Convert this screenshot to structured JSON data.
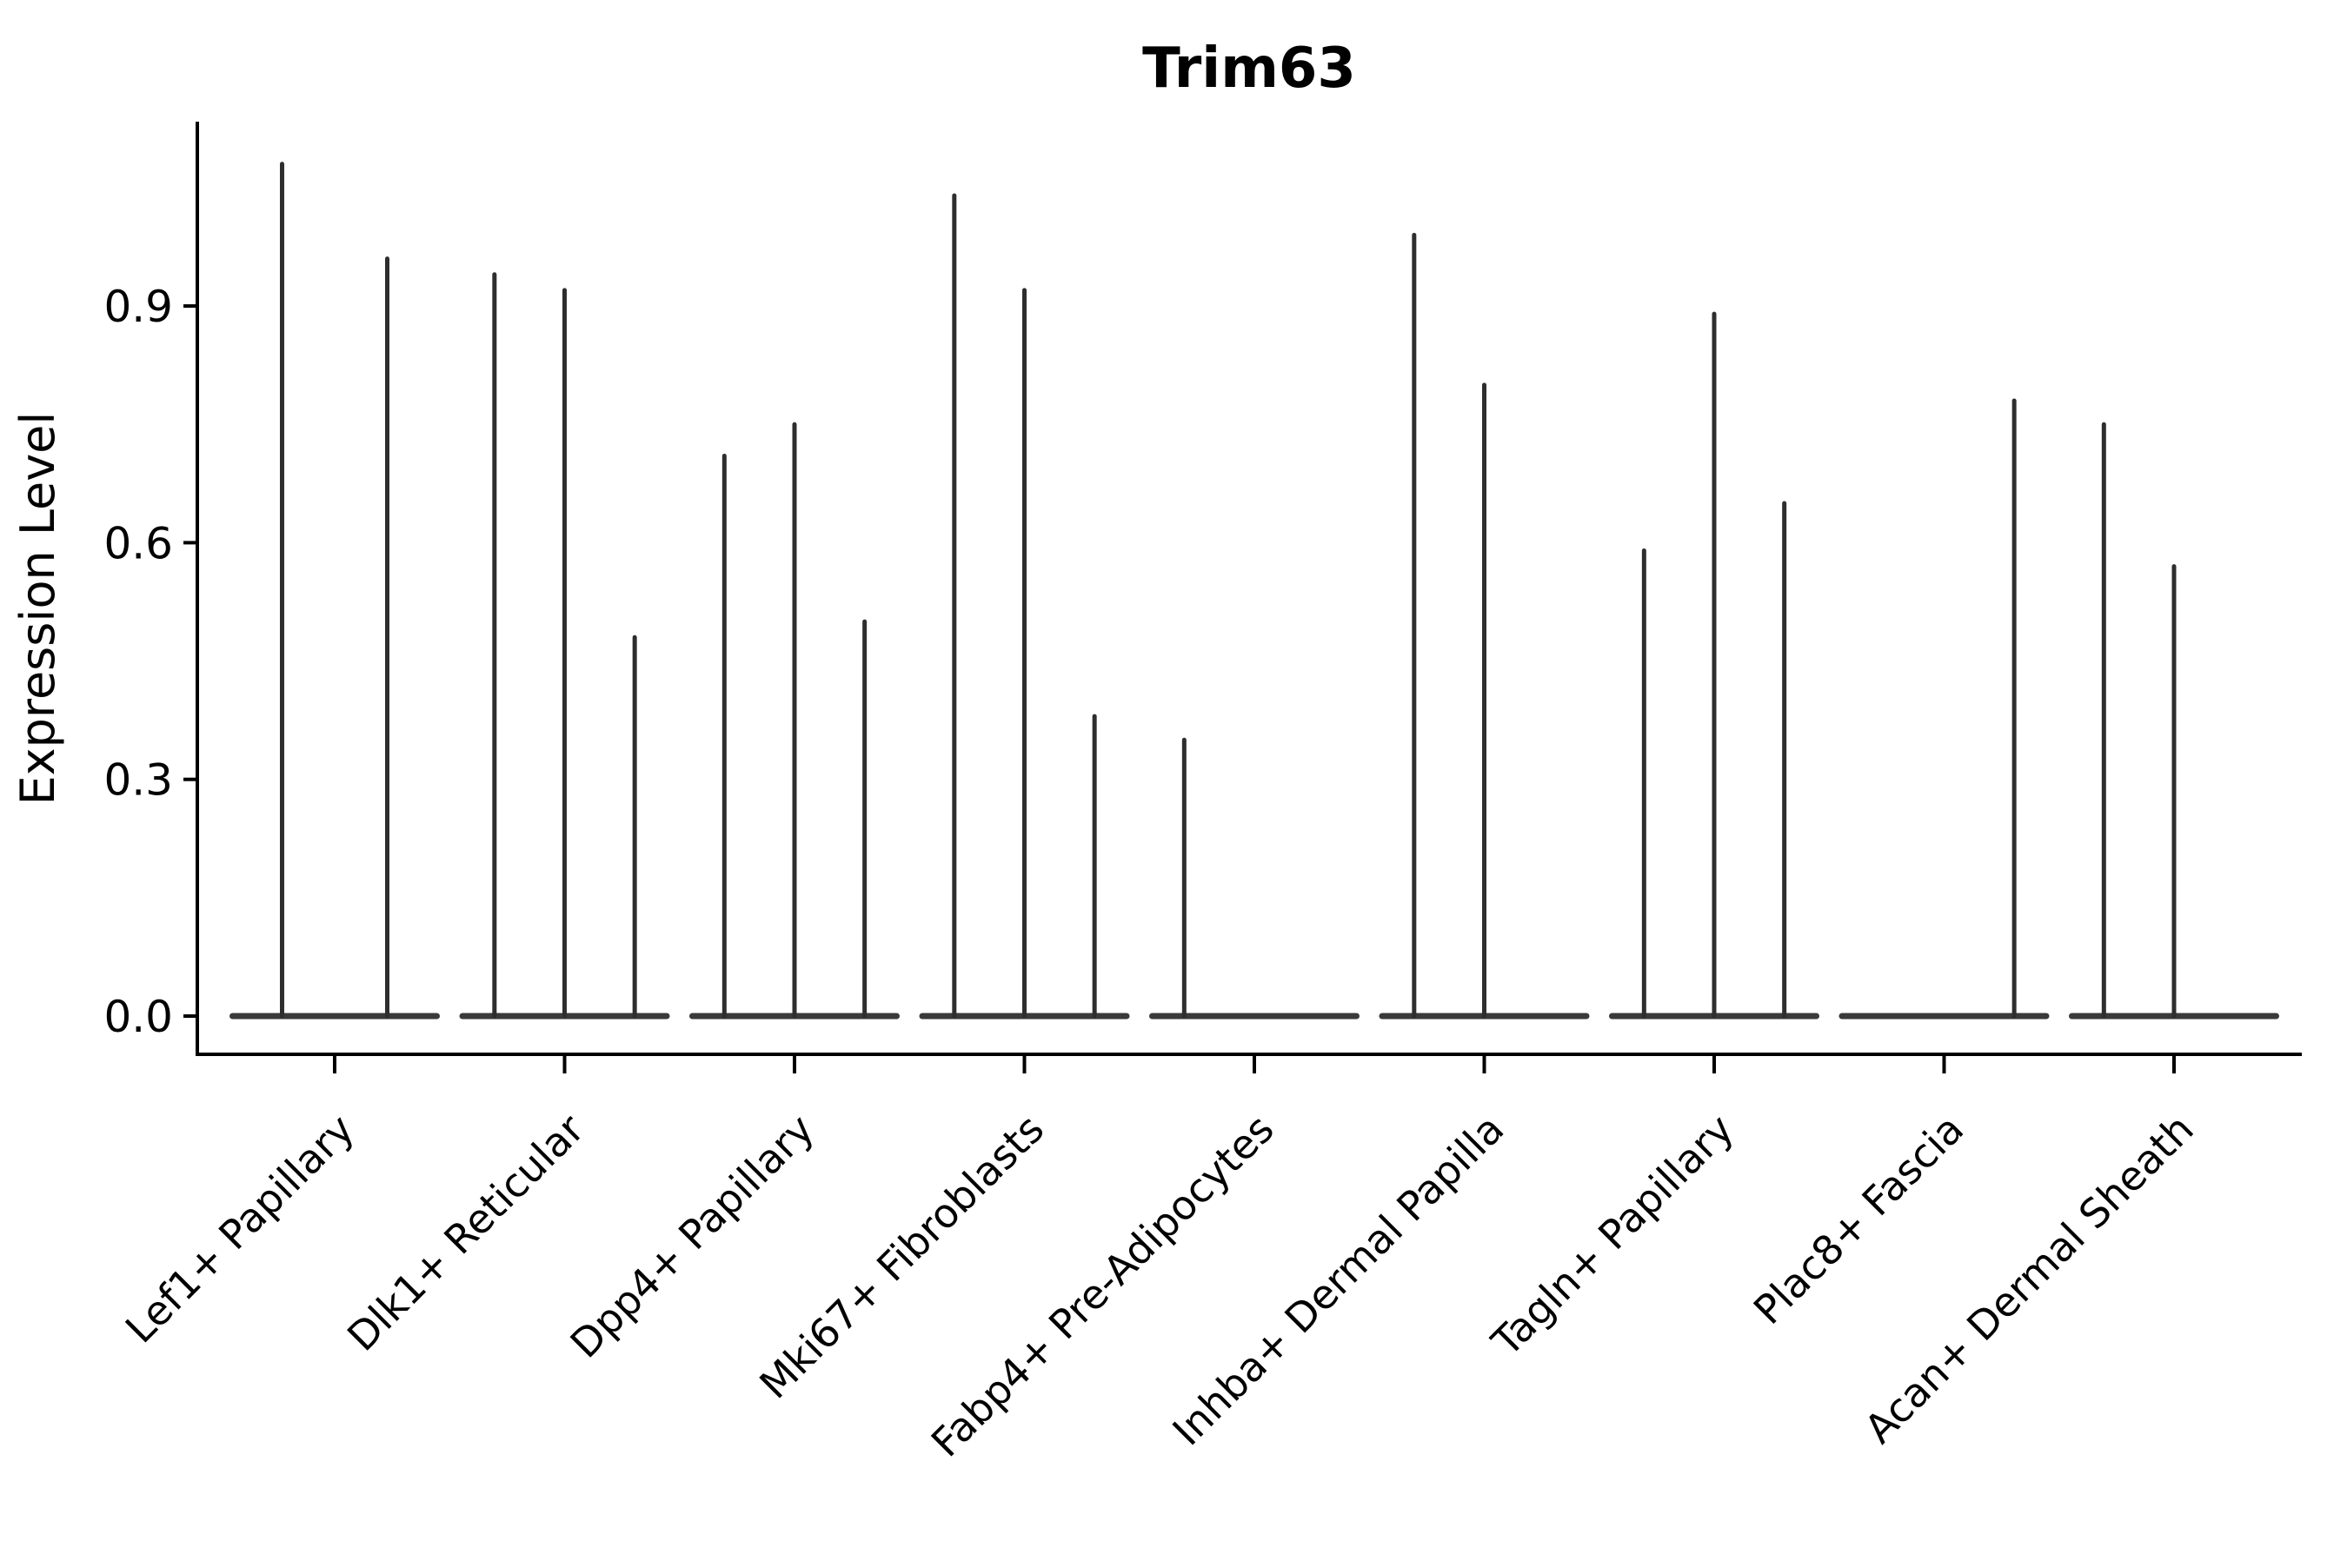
{
  "figure": {
    "title": "Trim63",
    "y_axis": {
      "label": "Expression Level",
      "tick_labels": [
        "0.0",
        "0.3",
        "0.6",
        "0.9"
      ]
    },
    "x_axis": {
      "categories": [
        "Lef1+ Papillary",
        "Dlk1+ Reticular",
        "Dpp4+ Papillary",
        "Mki67+ Fibroblasts",
        "Fabp4+ Pre-Adipocytes",
        "Inhba+ Dermal Papilla",
        "Tagln+ Papillary",
        "Plac8+ Fascia",
        "Acan+ Dermal Sheath"
      ]
    }
  },
  "chart_data": {
    "type": "violin",
    "title": "Trim63",
    "xlabel": "",
    "ylabel": "Expression Level",
    "ylim": [
      -0.05,
      1.14
    ],
    "yticks": [
      0.0,
      0.3,
      0.6,
      0.9
    ],
    "grid": false,
    "legend": null,
    "description": "Violin plot of Trim63 expression; each violin is collapsed flat at 0 with a thin spike reaching the maximum expression value of that group",
    "categories": [
      "Lef1+ Papillary",
      "Dlk1+ Reticular",
      "Dpp4+ Papillary",
      "Mki67+ Fibroblasts",
      "Fabp4+ Pre-Adipocytes",
      "Inhba+ Dermal Papilla",
      "Tagln+ Papillary",
      "Plac8+ Fascia",
      "Acan+ Dermal Sheath"
    ],
    "violins": [
      {
        "category": "Lef1+ Papillary",
        "group_maxima": [
          1.08,
          0.96
        ]
      },
      {
        "category": "Dlk1+ Reticular",
        "group_maxima": [
          0.94,
          0.92,
          0.48
        ]
      },
      {
        "category": "Dpp4+ Papillary",
        "group_maxima": [
          0.71,
          0.75,
          0.5
        ]
      },
      {
        "category": "Mki67+ Fibroblasts",
        "group_maxima": [
          1.04,
          0.92,
          0.38
        ]
      },
      {
        "category": "Fabp4+ Pre-Adipocytes",
        "group_maxima": [
          0.35,
          0,
          0
        ]
      },
      {
        "category": "Inhba+ Dermal Papilla",
        "group_maxima": [
          0.99,
          0.8,
          0
        ]
      },
      {
        "category": "Tagln+ Papillary",
        "group_maxima": [
          0.59,
          0.89,
          0.65
        ]
      },
      {
        "category": "Plac8+ Fascia",
        "group_maxima": [
          0,
          0,
          0.78
        ]
      },
      {
        "category": "Acan+ Dermal Sheath",
        "group_maxima": [
          0.75,
          0.57,
          0
        ]
      }
    ],
    "colors": {
      "spike": "#2e2e2e",
      "violin_base": "#3a3a3a",
      "axis": "#000000",
      "background": "#ffffff"
    }
  }
}
